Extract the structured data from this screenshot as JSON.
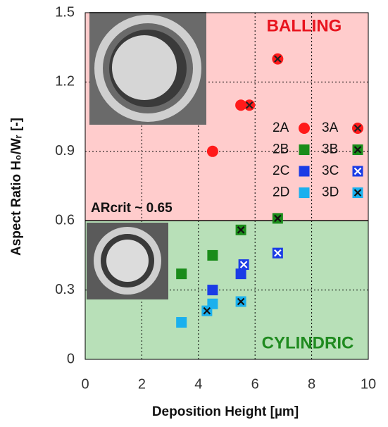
{
  "chart_data": {
    "type": "scatter",
    "xlabel": "Deposition Height [µm]",
    "ylabel": "Aspect Ratio H₀/Wᵣ [-]",
    "xlim": [
      0,
      10
    ],
    "xticks": [
      0,
      2,
      4,
      6,
      8,
      10
    ],
    "ylim": [
      0,
      1.5
    ],
    "yticks": [
      0,
      0.3,
      0.6,
      0.9,
      1.2,
      1.5
    ],
    "grid": true,
    "regions": [
      {
        "from": 0.6,
        "to": 1.5,
        "color": "#ffcccc",
        "label": "BALLING",
        "label_color": "#e8141e"
      },
      {
        "from": 0,
        "to": 0.6,
        "color": "#b8e0b8",
        "label": "CYLINDRIC",
        "label_color": "#1f8a1f"
      }
    ],
    "annotation": "ARcrit ~ 0.65",
    "series": [
      {
        "name": "2A",
        "color": "#ff1a1a",
        "marker": "circle",
        "cross": false,
        "x": [
          4.5,
          5.5
        ],
        "values": [
          0.9,
          1.1
        ]
      },
      {
        "name": "3A",
        "color": "#ff1a1a",
        "marker": "circle",
        "cross": true,
        "cross_color": "#222222",
        "x": [
          5.8,
          6.8
        ],
        "values": [
          1.1,
          1.3
        ]
      },
      {
        "name": "2B",
        "color": "#1a8c1a",
        "marker": "square",
        "cross": false,
        "x": [
          3.4,
          4.5
        ],
        "values": [
          0.37,
          0.45
        ]
      },
      {
        "name": "3B",
        "color": "#1a8c1a",
        "marker": "square",
        "cross": true,
        "cross_color": "#111111",
        "x": [
          5.5,
          6.8
        ],
        "values": [
          0.56,
          0.61
        ]
      },
      {
        "name": "2C",
        "color": "#1a3ce6",
        "marker": "square",
        "cross": false,
        "x": [
          4.5,
          5.5
        ],
        "values": [
          0.3,
          0.37
        ]
      },
      {
        "name": "3C",
        "color": "#1a3ce6",
        "marker": "square",
        "cross": true,
        "cross_color": "#ffffff",
        "x": [
          5.6,
          6.8
        ],
        "values": [
          0.41,
          0.46
        ]
      },
      {
        "name": "2D",
        "color": "#1ab0ee",
        "marker": "square",
        "cross": false,
        "x": [
          3.4,
          4.5
        ],
        "values": [
          0.16,
          0.24
        ]
      },
      {
        "name": "3D",
        "color": "#1ab0ee",
        "marker": "square",
        "cross": true,
        "cross_color": "#111111",
        "x": [
          4.3,
          5.5
        ],
        "values": [
          0.21,
          0.25
        ]
      }
    ]
  }
}
